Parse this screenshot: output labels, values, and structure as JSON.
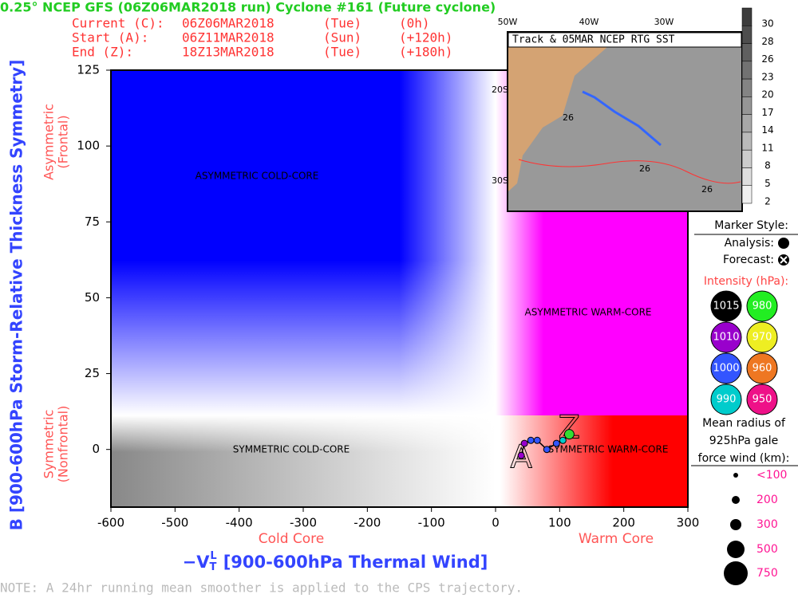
{
  "chart_data": {
    "type": "scatter",
    "title": "0.25° NCEP GFS (06Z06MAR2018 run) Cyclone #161 (Future cyclone)",
    "info": [
      [
        "Current (C):",
        "06Z06MAR2018",
        "(Tue)",
        "(0h)"
      ],
      [
        "Start (A):",
        "06Z11MAR2018",
        "(Sun)",
        "(+120h)"
      ],
      [
        "End (Z):",
        "18Z13MAR2018",
        "(Tue)",
        "(+180h)"
      ]
    ],
    "ylabel": "B [900-600hPa Storm-Relative Thickness Symmetry]",
    "xlabel_symbol": "−V",
    "xlabel_sub": "T",
    "xlabel_sup": "L",
    "xlabel": "[900-600hPa Thermal Wind]",
    "y_side_labels": [
      [
        "Asymmetric",
        "(Frontal)"
      ],
      [
        "Symmetric",
        "(Nonfrontal)"
      ]
    ],
    "x_side_labels": [
      "Cold Core",
      "Warm Core"
    ],
    "quadrant_labels": [
      "ASYMMETRIC COLD-CORE",
      "ASYMMETRIC WARM-CORE",
      "SYMMETRIC COLD-CORE",
      "SYMMETRIC WARM-CORE"
    ],
    "start_marker": "A",
    "end_marker": "Z",
    "xlim": [
      -600,
      300
    ],
    "ylim": [
      -19,
      125
    ],
    "xticks": [
      -600,
      -500,
      -400,
      -300,
      -200,
      -100,
      0,
      100,
      200,
      300
    ],
    "yticks": [
      0,
      25,
      50,
      75,
      100,
      125
    ],
    "x": [
      40,
      45,
      55,
      65,
      80,
      95,
      105,
      115
    ],
    "values": [
      -2,
      2,
      3,
      3,
      0,
      2,
      3,
      5
    ],
    "point_colors": [
      "#9900cc",
      "#9900cc",
      "#3355ff",
      "#3355ff",
      "#3355ff",
      "#3355ff",
      "#00cccc",
      "#33dd33"
    ],
    "note": "NOTE: A 24hr running mean smoother is applied to the CPS trajectory."
  },
  "inset": {
    "title": "Track & 05MAR NCEP RTG SST",
    "lon_labels": [
      "50W",
      "40W",
      "30W"
    ],
    "lat_labels": [
      "20S",
      "30S"
    ],
    "contour_label": "26",
    "colorbar": [
      30,
      28,
      26,
      23,
      20,
      17,
      14,
      11,
      8,
      5,
      2
    ]
  },
  "legend": {
    "marker_title": "Marker Style:",
    "analysis": "Analysis:",
    "forecast": "Forecast:",
    "intensity_title": "Intensity (hPa):",
    "intensities": [
      {
        "value": 1015,
        "color": "#000000"
      },
      {
        "value": 980,
        "color": "#22ee22"
      },
      {
        "value": 1010,
        "color": "#9900cc"
      },
      {
        "value": 970,
        "color": "#eeee22"
      },
      {
        "value": 1000,
        "color": "#3355ff"
      },
      {
        "value": 960,
        "color": "#ee7722"
      },
      {
        "value": 990,
        "color": "#00cccc"
      },
      {
        "value": 950,
        "color": "#ee1188"
      }
    ],
    "radius_title": [
      "Mean radius of",
      "925hPa gale",
      "force wind (km):"
    ],
    "radii": [
      "<100",
      "200",
      "300",
      "500",
      "750"
    ]
  }
}
